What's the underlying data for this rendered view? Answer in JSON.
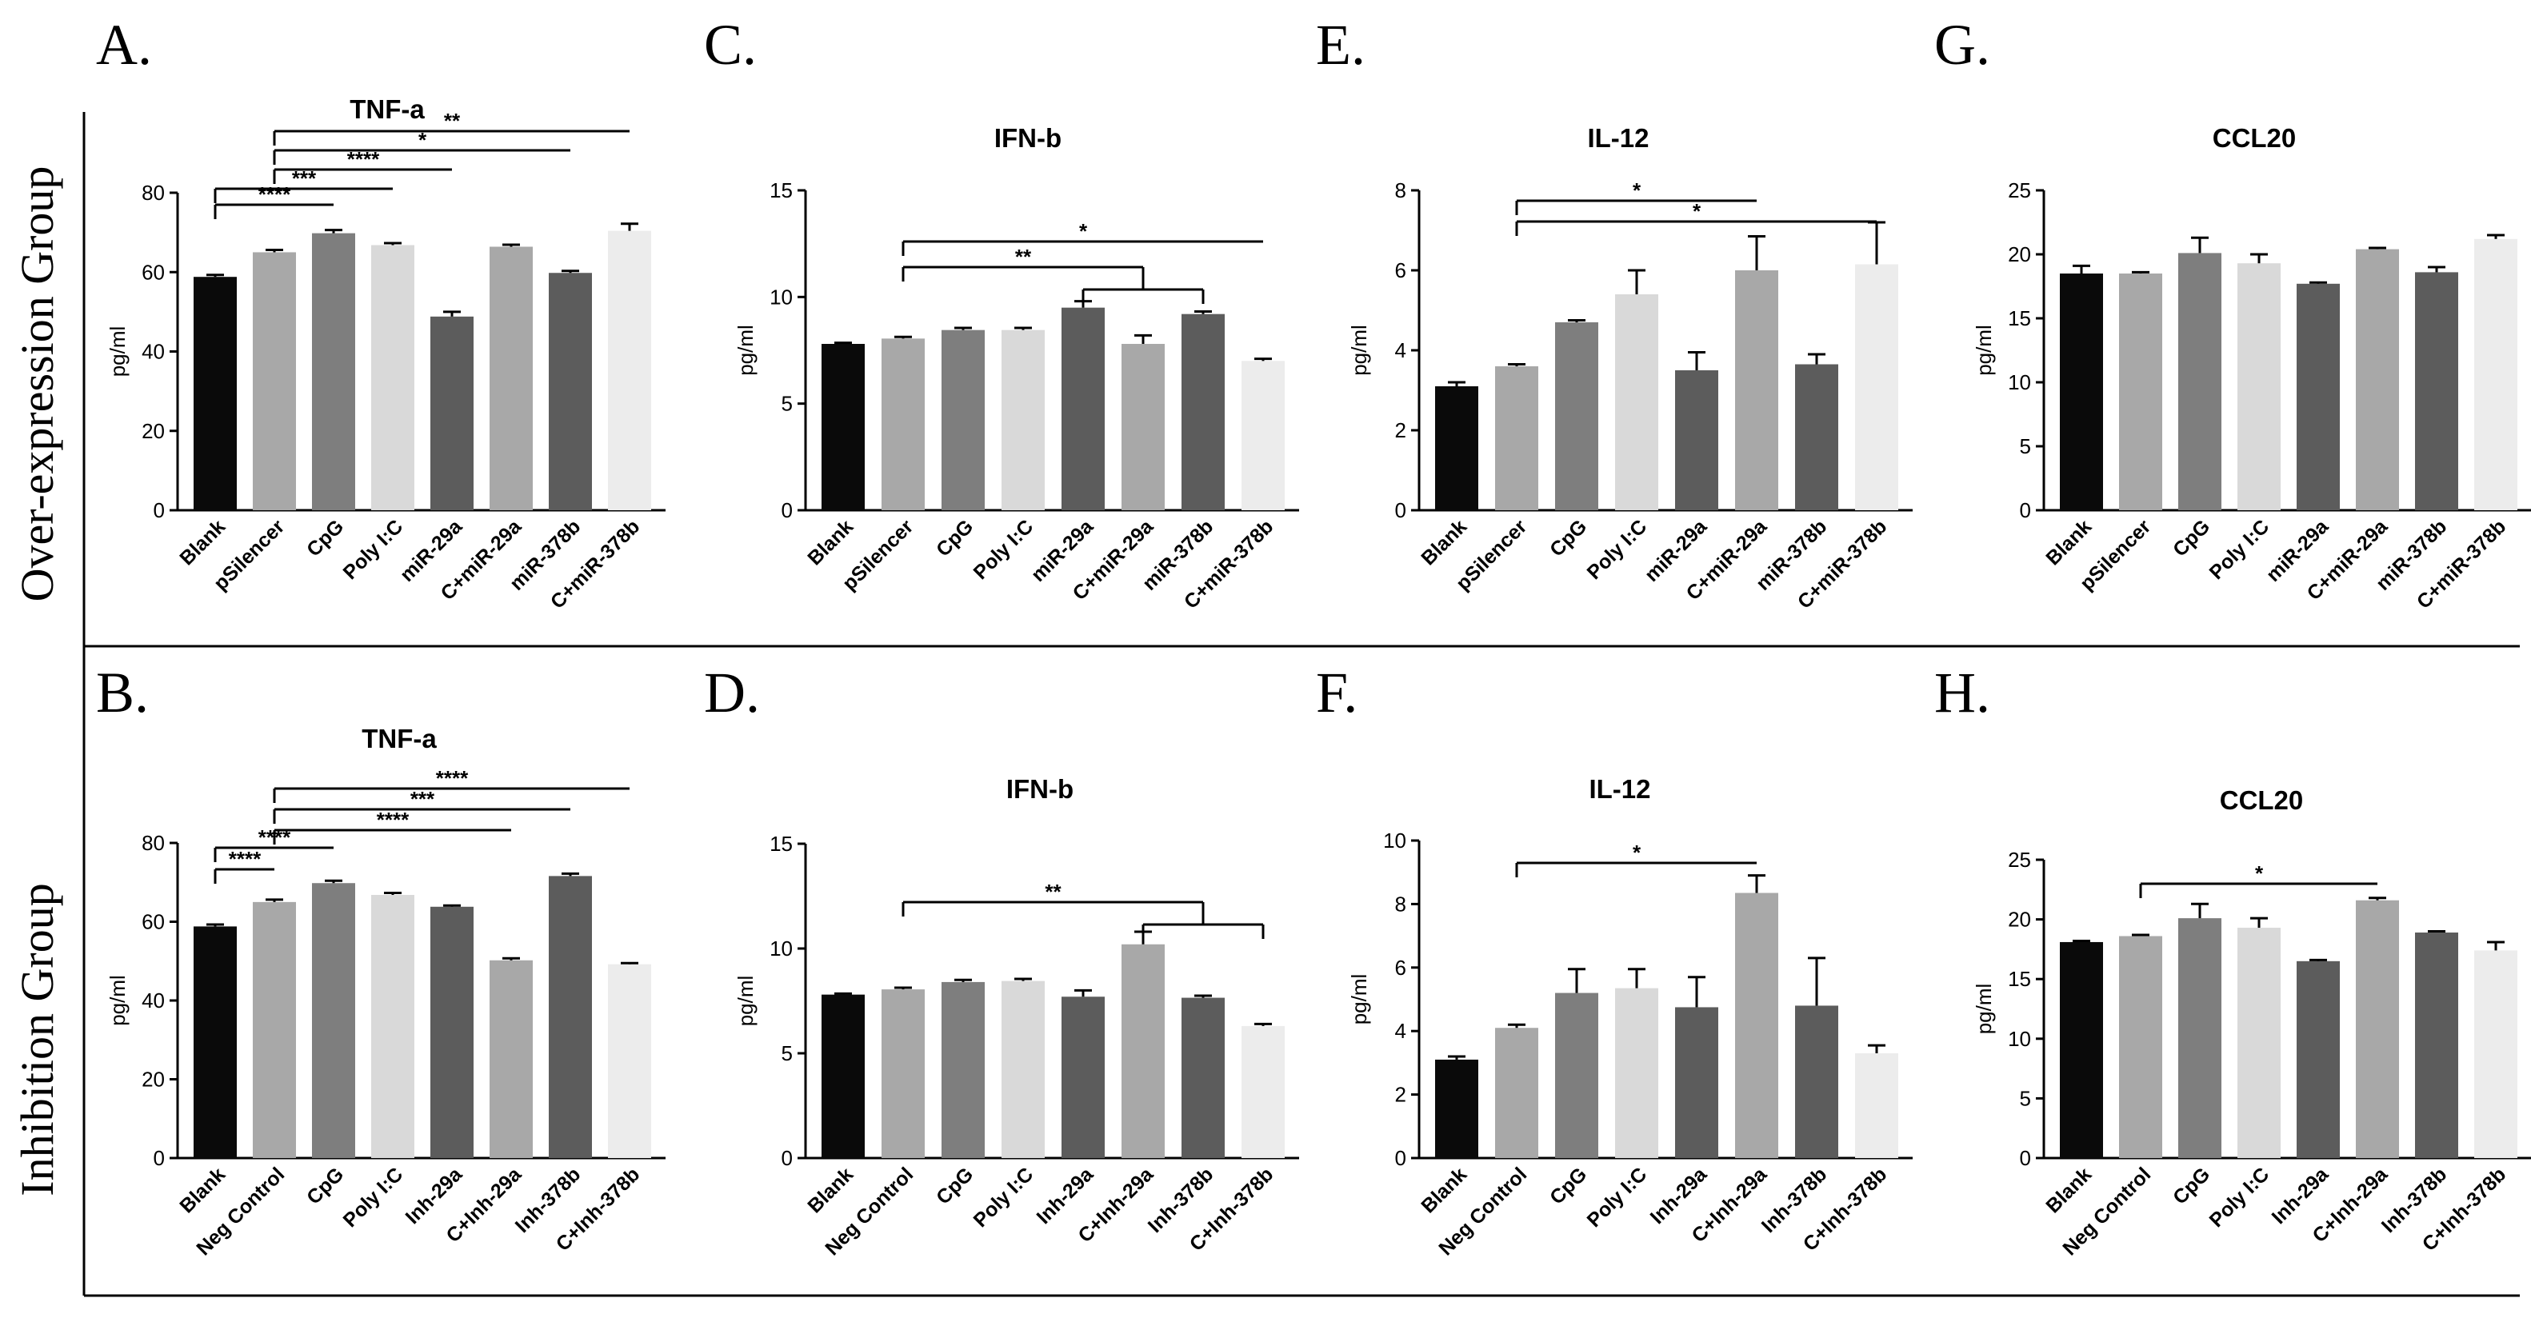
{
  "figure": {
    "row_labels": [
      "Over-expression Group",
      "Inhibition Group"
    ]
  },
  "chart_data": [
    {
      "panel": "A.",
      "type": "bar",
      "title": "TNF-a",
      "ylabel": "pg/ml",
      "ylim": [
        0,
        80
      ],
      "yticks": [
        0,
        20,
        40,
        60,
        80
      ],
      "categories": [
        "Blank",
        "pSilencer",
        "CpG",
        "Poly I:C",
        "miR-29a",
        "C+miR-29a",
        "miR-378b",
        "C+miR-378b"
      ],
      "values": [
        58.8,
        65.0,
        69.8,
        66.8,
        48.8,
        66.4,
        59.8,
        70.4
      ],
      "errors": [
        0.5,
        0.6,
        0.8,
        0.5,
        1.2,
        0.5,
        0.5,
        1.8
      ],
      "significance": [
        {
          "from": 0,
          "to": 2,
          "label": "****"
        },
        {
          "from": 0,
          "to": 3,
          "label": "***"
        },
        {
          "from": 1,
          "to": 4,
          "label": "****"
        },
        {
          "from": 1,
          "to": 6,
          "label": "*"
        },
        {
          "from": 1,
          "to": 7,
          "label": "**"
        }
      ]
    },
    {
      "panel": "C.",
      "type": "bar",
      "title": "IFN-b",
      "ylabel": "pg/ml",
      "ylim": [
        0,
        15
      ],
      "yticks": [
        0,
        5,
        10,
        15
      ],
      "categories": [
        "Blank",
        "pSilencer",
        "CpG",
        "Poly I:C",
        "miR-29a",
        "C+miR-29a",
        "miR-378b",
        "C+miR-378b"
      ],
      "values": [
        7.8,
        8.05,
        8.45,
        8.45,
        9.5,
        7.8,
        9.2,
        7.0
      ],
      "errors": [
        0.05,
        0.08,
        0.1,
        0.1,
        0.3,
        0.4,
        0.12,
        0.1
      ],
      "significance": [
        {
          "from": 1,
          "to": 7,
          "label": "*"
        },
        {
          "from": 1,
          "toGroup": [
            4,
            6
          ],
          "label": "**"
        }
      ]
    },
    {
      "panel": "E.",
      "type": "bar",
      "title": "IL-12",
      "ylabel": "pg/ml",
      "ylim": [
        0,
        8
      ],
      "yticks": [
        0,
        2,
        4,
        6,
        8
      ],
      "categories": [
        "Blank",
        "pSilencer",
        "CpG",
        "Poly I:C",
        "miR-29a",
        "C+miR-29a",
        "miR-378b",
        "C+miR-378b"
      ],
      "values": [
        3.1,
        3.6,
        4.7,
        5.4,
        3.5,
        6.0,
        3.65,
        6.15
      ],
      "errors": [
        0.1,
        0.05,
        0.05,
        0.6,
        0.45,
        0.85,
        0.25,
        1.05
      ],
      "significance": [
        {
          "from": 1,
          "to": 5,
          "label": "*"
        },
        {
          "from": 1,
          "to": 7,
          "label": "*"
        }
      ]
    },
    {
      "panel": "G.",
      "type": "bar",
      "title": "CCL20",
      "ylabel": "pg/ml",
      "ylim": [
        0,
        25
      ],
      "yticks": [
        0,
        5,
        10,
        15,
        20,
        25
      ],
      "categories": [
        "Blank",
        "pSilencer",
        "CpG",
        "Poly I:C",
        "miR-29a",
        "C+miR-29a",
        "miR-378b",
        "C+miR-378b"
      ],
      "values": [
        18.5,
        18.5,
        20.1,
        19.3,
        17.7,
        20.4,
        18.6,
        21.2
      ],
      "errors": [
        0.6,
        0.1,
        1.2,
        0.7,
        0.1,
        0.1,
        0.4,
        0.3
      ],
      "significance": []
    },
    {
      "panel": "B.",
      "type": "bar",
      "title": "TNF-a",
      "ylabel": "pg/ml",
      "ylim": [
        0,
        80
      ],
      "yticks": [
        0,
        20,
        40,
        60,
        80
      ],
      "categories": [
        "Blank",
        "Neg Control",
        "CpG",
        "Poly I:C",
        "Inh-29a",
        "C+Inh-29a",
        "Inh-378b",
        "C+Inh-378b"
      ],
      "values": [
        58.8,
        65.0,
        69.8,
        66.8,
        63.8,
        50.2,
        71.6,
        49.2
      ],
      "errors": [
        0.5,
        0.6,
        0.6,
        0.5,
        0.3,
        0.5,
        0.6,
        0.3
      ],
      "significance": [
        {
          "from": 0,
          "to": 1,
          "label": "****"
        },
        {
          "from": 0,
          "to": 2,
          "label": "****"
        },
        {
          "from": 1,
          "to": 5,
          "label": "****"
        },
        {
          "from": 1,
          "to": 6,
          "label": "***"
        },
        {
          "from": 1,
          "to": 7,
          "label": "****"
        }
      ]
    },
    {
      "panel": "D.",
      "type": "bar",
      "title": "IFN-b",
      "ylabel": "pg/ml",
      "ylim": [
        0,
        15
      ],
      "yticks": [
        0,
        5,
        10,
        15
      ],
      "categories": [
        "Blank",
        "Neg Control",
        "CpG",
        "Poly I:C",
        "Inh-29a",
        "C+Inh-29a",
        "Inh-378b",
        "C+Inh-378b"
      ],
      "values": [
        7.8,
        8.05,
        8.4,
        8.45,
        7.7,
        10.2,
        7.65,
        6.3
      ],
      "errors": [
        0.05,
        0.08,
        0.1,
        0.1,
        0.3,
        0.6,
        0.1,
        0.1
      ],
      "significance": [
        {
          "from": 1,
          "toGroup": [
            5,
            7
          ],
          "label": "**"
        }
      ]
    },
    {
      "panel": "F.",
      "type": "bar",
      "title": "IL-12",
      "ylabel": "pg/ml",
      "ylim": [
        0,
        10
      ],
      "yticks": [
        0,
        2,
        4,
        6,
        8,
        10
      ],
      "categories": [
        "Blank",
        "Neg Control",
        "CpG",
        "Poly I:C",
        "Inh-29a",
        "C+Inh-29a",
        "Inh-378b",
        "C+Inh-378b"
      ],
      "values": [
        3.1,
        4.1,
        5.2,
        5.35,
        4.75,
        8.35,
        4.8,
        3.3
      ],
      "errors": [
        0.1,
        0.1,
        0.75,
        0.6,
        0.95,
        0.55,
        1.5,
        0.25
      ],
      "significance": [
        {
          "from": 1,
          "to": 5,
          "label": "*"
        }
      ]
    },
    {
      "panel": "H.",
      "type": "bar",
      "title": "CCL20",
      "ylabel": "pg/ml",
      "ylim": [
        0,
        25
      ],
      "yticks": [
        0,
        5,
        10,
        15,
        20,
        25
      ],
      "categories": [
        "Blank",
        "Neg Control",
        "CpG",
        "Poly I:C",
        "Inh-29a",
        "C+Inh-29a",
        "Inh-378b",
        "C+Inh-378b"
      ],
      "values": [
        18.1,
        18.6,
        20.1,
        19.3,
        16.5,
        21.6,
        18.9,
        17.4
      ],
      "errors": [
        0.1,
        0.1,
        1.2,
        0.8,
        0.1,
        0.2,
        0.1,
        0.7
      ],
      "significance": [
        {
          "from": 1,
          "to": 5,
          "label": "*"
        }
      ]
    }
  ],
  "colors": {
    "bars": [
      "#0a0a0a",
      "#a8a8a8",
      "#7e7e7e",
      "#d9d9d9",
      "#5c5c5c",
      "#a8a8a8",
      "#5c5c5c",
      "#ececec"
    ],
    "axis": "#000000"
  }
}
